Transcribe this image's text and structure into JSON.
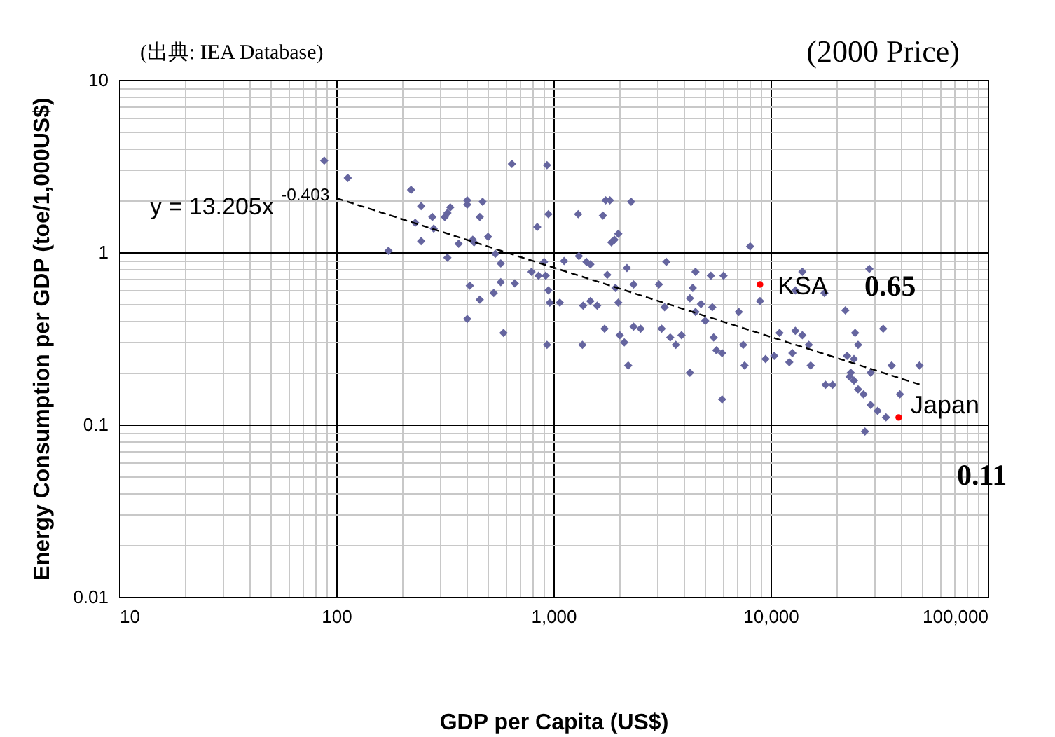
{
  "chart_data": {
    "type": "scatter",
    "xlabel": "GDP per Capita (US$)",
    "ylabel": "Energy Consumption per GDP (toe/1,000US$)",
    "log": "xy",
    "grid": true,
    "marker": "diamond",
    "xlim": [
      10,
      100000
    ],
    "ylim": [
      0.01,
      10
    ],
    "xticks": [
      10,
      {
        "value": 20,
        "label": null
      },
      {
        "value": 30,
        "label": null
      },
      {
        "value": 40,
        "label": null
      },
      {
        "value": 50,
        "label": null
      },
      {
        "value": 60,
        "label": null
      },
      {
        "value": 70,
        "label": null
      },
      {
        "value": 80,
        "label": null
      },
      {
        "value": 90,
        "label": null
      },
      100,
      {
        "value": 200,
        "label": null
      },
      {
        "value": 300,
        "label": null
      },
      {
        "value": 400,
        "label": null
      },
      {
        "value": 500,
        "label": null
      },
      {
        "value": 600,
        "label": null
      },
      {
        "value": 700,
        "label": null
      },
      {
        "value": 800,
        "label": null
      },
      {
        "value": 900,
        "label": null
      },
      {
        "value": 1000,
        "label": "1,000"
      },
      {
        "value": 2000,
        "label": null
      },
      {
        "value": 3000,
        "label": null
      },
      {
        "value": 4000,
        "label": null
      },
      {
        "value": 5000,
        "label": null
      },
      {
        "value": 6000,
        "label": null
      },
      {
        "value": 7000,
        "label": null
      },
      {
        "value": 8000,
        "label": null
      },
      {
        "value": 9000,
        "label": null
      },
      {
        "value": 10000,
        "label": "10,000"
      },
      {
        "value": 20000,
        "label": null
      },
      {
        "value": 30000,
        "label": null
      },
      {
        "value": 40000,
        "label": null
      },
      {
        "value": 50000,
        "label": null
      },
      {
        "value": 60000,
        "label": null
      },
      {
        "value": 70000,
        "label": null
      },
      {
        "value": 80000,
        "label": null
      },
      {
        "value": 90000,
        "label": null
      },
      {
        "value": 100000,
        "label": "100,000"
      }
    ],
    "yticks": [
      0.01,
      {
        "value": 0.02,
        "label": null
      },
      {
        "value": 0.03,
        "label": null
      },
      {
        "value": 0.04,
        "label": null
      },
      {
        "value": 0.05,
        "label": null
      },
      {
        "value": 0.06,
        "label": null
      },
      {
        "value": 0.07,
        "label": null
      },
      {
        "value": 0.08,
        "label": null
      },
      {
        "value": 0.09,
        "label": null
      },
      0.1,
      {
        "value": 0.2,
        "label": null
      },
      {
        "value": 0.3,
        "label": null
      },
      {
        "value": 0.4,
        "label": null
      },
      {
        "value": 0.5,
        "label": null
      },
      {
        "value": 0.6,
        "label": null
      },
      {
        "value": 0.7,
        "label": null
      },
      {
        "value": 0.8,
        "label": null
      },
      {
        "value": 0.9,
        "label": null
      },
      1,
      {
        "value": 2,
        "label": null
      },
      {
        "value": 3,
        "label": null
      },
      {
        "value": 4,
        "label": null
      },
      {
        "value": 5,
        "label": null
      },
      {
        "value": 6,
        "label": null
      },
      {
        "value": 7,
        "label": null
      },
      {
        "value": 8,
        "label": null
      },
      {
        "value": 9,
        "label": null
      },
      10
    ],
    "series": [
      {
        "color": "#65659f",
        "x": [
          88,
          113,
          221,
          246,
          277,
          281,
          231,
          246,
          316,
          325,
          335,
          401,
          401,
          472,
          458,
          366,
          425,
          431,
          500,
          325,
          174,
          540,
          572,
          644,
          934,
          948,
          842,
          906,
          793,
          854,
          921,
          948,
          962,
          572,
          664,
          412,
          531,
          458,
          401,
          589,
          934,
          1740,
          1820,
          2280,
          1300,
          1690,
          1990,
          1910,
          1850,
          8050,
          1120,
          1310,
          1420,
          1480,
          1770,
          2180,
          3310,
          4510,
          5310,
          6070,
          3060,
          2340,
          1930,
          8940,
          4380,
          4250,
          4780,
          5390,
          3250,
          1070,
          1370,
          1480,
          1590,
          1990,
          4510,
          5000,
          7140,
          14000,
          13000,
          17700,
          28500,
          22100,
          1720,
          2020,
          2120,
          2340,
          2520,
          3150,
          3450,
          3660,
          3890,
          5470,
          5630,
          5980,
          7480,
          11000,
          13000,
          14000,
          15000,
          12600,
          12200,
          9480,
          10400,
          7590,
          15300,
          1360,
          2210,
          24500,
          33000,
          25300,
          22500,
          24200,
          23400,
          23100,
          28900,
          36100,
          48500,
          39400,
          24200,
          25300,
          26800,
          17900,
          19300,
          28900,
          31100,
          34000,
          27200,
          4250,
          5980
        ],
        "values": [
          3.4,
          2.7,
          2.3,
          1.85,
          1.6,
          1.37,
          1.48,
          1.16,
          1.6,
          1.69,
          1.82,
          2.0,
          1.89,
          1.96,
          1.6,
          1.12,
          1.18,
          1.14,
          1.23,
          0.93,
          1.02,
          0.98,
          0.86,
          3.25,
          3.2,
          1.66,
          1.4,
          0.88,
          0.77,
          0.73,
          0.73,
          0.6,
          0.51,
          0.67,
          0.66,
          0.64,
          0.58,
          0.53,
          0.41,
          0.34,
          0.29,
          2.0,
          2.0,
          1.96,
          1.66,
          1.63,
          1.28,
          1.18,
          1.14,
          1.08,
          0.89,
          0.95,
          0.88,
          0.85,
          0.74,
          0.81,
          0.88,
          0.77,
          0.73,
          0.73,
          0.65,
          0.65,
          0.62,
          0.52,
          0.62,
          0.54,
          0.5,
          0.48,
          0.48,
          0.51,
          0.49,
          0.52,
          0.49,
          0.51,
          0.45,
          0.4,
          0.45,
          0.77,
          0.6,
          0.58,
          0.8,
          0.46,
          0.36,
          0.33,
          0.3,
          0.37,
          0.36,
          0.36,
          0.32,
          0.29,
          0.33,
          0.32,
          0.27,
          0.26,
          0.29,
          0.34,
          0.35,
          0.33,
          0.29,
          0.26,
          0.23,
          0.24,
          0.25,
          0.22,
          0.22,
          0.29,
          0.22,
          0.34,
          0.36,
          0.29,
          0.25,
          0.24,
          0.2,
          0.19,
          0.2,
          0.22,
          0.22,
          0.15,
          0.18,
          0.16,
          0.15,
          0.17,
          0.17,
          0.13,
          0.12,
          0.11,
          0.091,
          0.2,
          0.14
        ]
      },
      {
        "type": "scatter",
        "color": "#ff0000",
        "marker": "circle",
        "x": [
          8940,
          38900
        ],
        "values": [
          0.65,
          0.11
        ]
      },
      {
        "type": "line",
        "color": "#000000",
        "line_style": "dashed",
        "marker": "none",
        "x": [
          100,
          48500
        ],
        "values": [
          2.06,
          0.171
        ]
      }
    ],
    "annotations": [
      "(出典: IEA Database)",
      "(2000 Price)",
      "y = 13.205x$^{-0.403}$",
      "KSA",
      "0.65",
      "Japan",
      "0.11"
    ]
  }
}
